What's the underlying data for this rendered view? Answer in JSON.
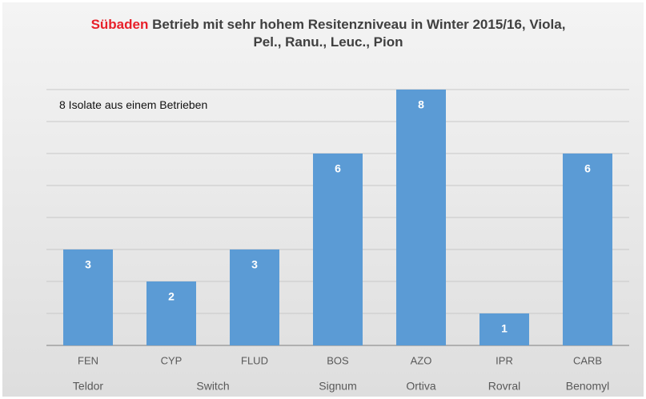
{
  "chart_data": {
    "type": "bar",
    "title_highlight": "Sübaden",
    "title": "Betrieb mit sehr hohem Resitenzniveau in Winter 2015/16, Viola, Pel., Ranu., Leuc., Pion",
    "annotation": "8 Isolate aus einem Betrieben",
    "categories": [
      "FEN",
      "CYP",
      "FLUD",
      "BOS",
      "AZO",
      "IPR",
      "CARB"
    ],
    "values": [
      3,
      2,
      3,
      6,
      8,
      1,
      6
    ],
    "color": "#5b9bd5",
    "group_labels": [
      "Teldor",
      "Switch",
      "Signum",
      "Ortiva",
      "Rovral",
      "Benomyl"
    ],
    "group_sizes": [
      1,
      2,
      1,
      1,
      1,
      1
    ],
    "ylim": [
      0,
      8
    ],
    "yticks": [
      0,
      1,
      2,
      3,
      4,
      5,
      6,
      7,
      8
    ],
    "grid": true
  }
}
